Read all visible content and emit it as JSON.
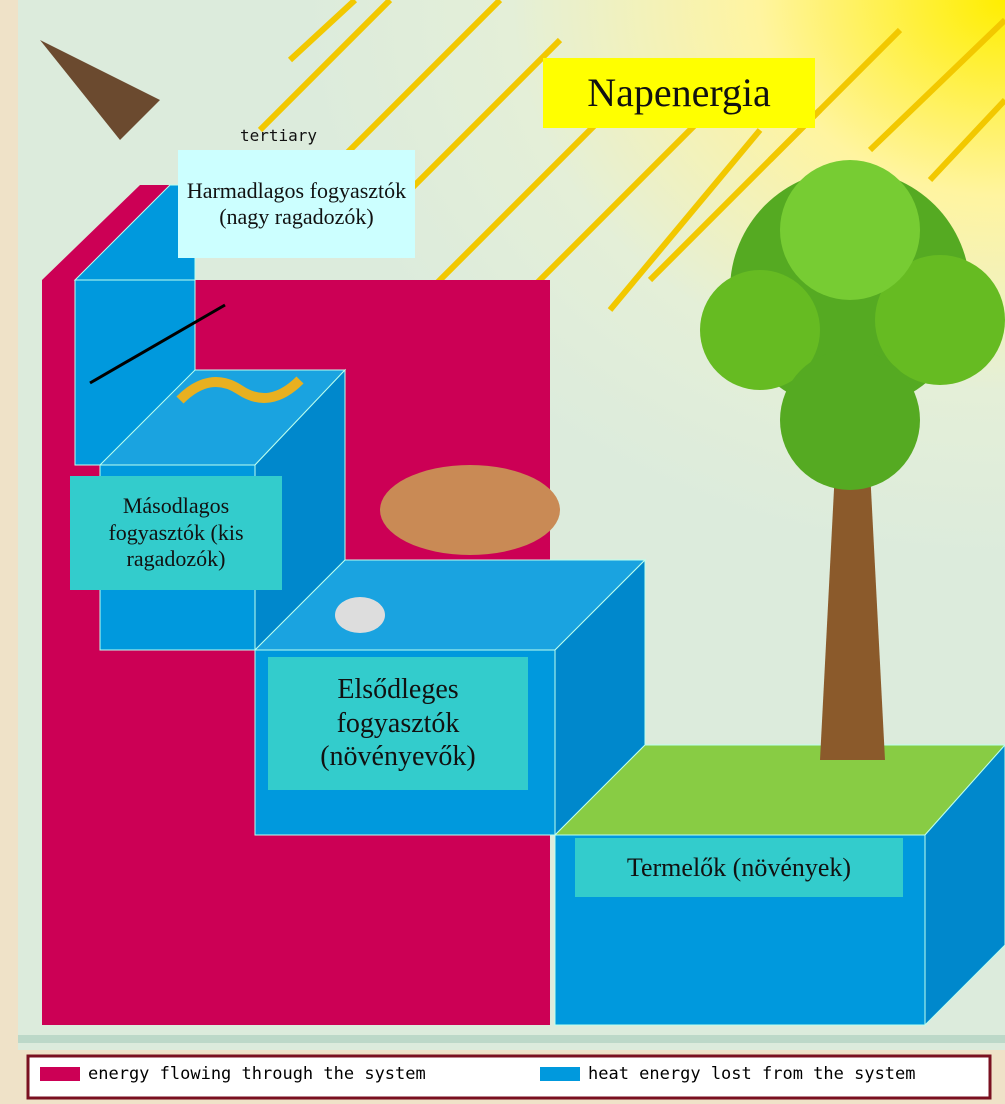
{
  "title": "Napenergia",
  "levels": [
    {
      "label": "Harmadlagos fogyasztók (nagy ragadozók)"
    },
    {
      "label": "Másodlagos fogyasztók (kis ragadozók)"
    },
    {
      "label": "Elsődleges fogyasztók (növényevők)"
    },
    {
      "label": "Termelők (növények)"
    }
  ],
  "original_caption": "tertiary",
  "legend": [
    {
      "label": "energy flowing through the system"
    },
    {
      "label": "heat energy lost from the system"
    }
  ]
}
